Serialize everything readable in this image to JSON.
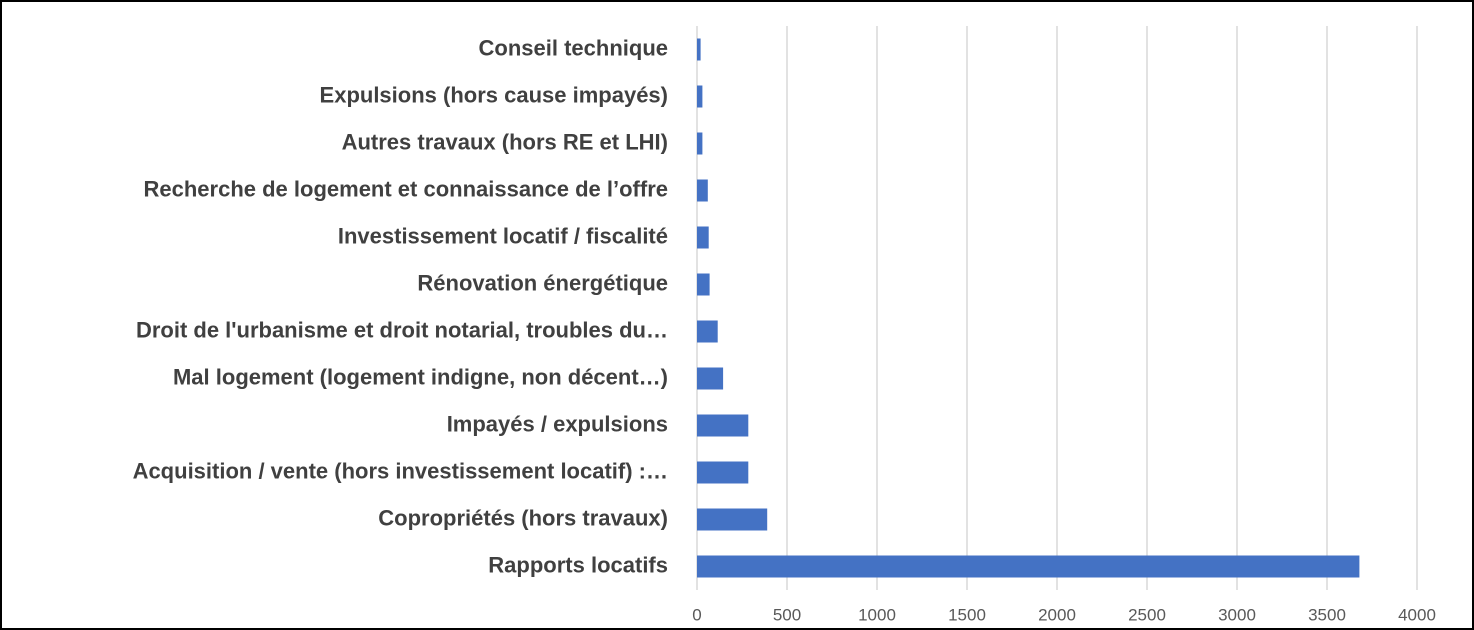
{
  "chart_data": {
    "type": "bar",
    "orientation": "horizontal",
    "categories": [
      "Conseil technique",
      "Expulsions (hors cause impayés)",
      "Autres travaux (hors RE et LHI)",
      "Recherche de logement et connaissance de l’offre",
      "Investissement locatif / fiscalité",
      "Rénovation énergétique",
      "Droit de l'urbanisme et droit notarial, troubles du…",
      "Mal logement (logement indigne, non décent…)",
      "Impayés / expulsions",
      "Acquisition / vente (hors investissement locatif) :…",
      "Copropriétés (hors travaux)",
      "Rapports locatifs"
    ],
    "values": [
      20,
      30,
      30,
      60,
      65,
      70,
      115,
      145,
      285,
      285,
      390,
      3680
    ],
    "color": "#4472c4",
    "xlim": [
      0,
      4000
    ],
    "xticks": [
      0,
      500,
      1000,
      1500,
      2000,
      2500,
      3000,
      3500,
      4000
    ],
    "grid": true
  }
}
